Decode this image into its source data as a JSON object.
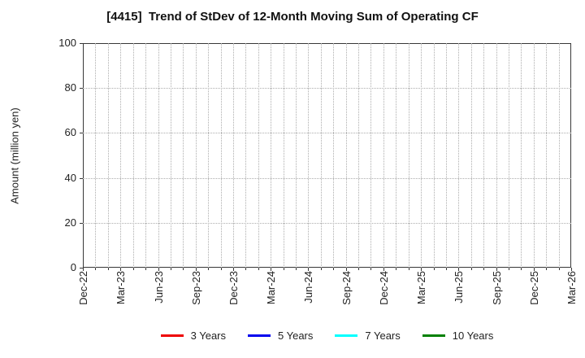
{
  "chart_data": {
    "type": "line",
    "title": "[4415]  Trend of StDev of 12-Month Moving Sum of Operating CF",
    "ylabel": "Amount (million yen)",
    "xlabel": "",
    "ylim": [
      0,
      100
    ],
    "y_ticks": [
      0,
      20,
      40,
      60,
      80,
      100
    ],
    "x_tick_labels": [
      "Dec-22",
      "Mar-23",
      "Jun-23",
      "Sep-23",
      "Dec-23",
      "Mar-24",
      "Jun-24",
      "Sep-24",
      "Dec-24",
      "Mar-25",
      "Jun-25",
      "Sep-25",
      "Dec-25",
      "Mar-26"
    ],
    "x_total_intervals": 39,
    "x_label_every": 3,
    "grid": true,
    "series": [],
    "legend": {
      "position": "bottom",
      "entries": [
        {
          "label": "3 Years",
          "color": "#ee0000"
        },
        {
          "label": "5 Years",
          "color": "#0000ee"
        },
        {
          "label": "7 Years",
          "color": "#00ffff"
        },
        {
          "label": "10 Years",
          "color": "#008000"
        }
      ]
    },
    "colors": {
      "background": "#ffffff",
      "frame": "#383838",
      "grid": "#adadad",
      "tick_text": "#222222",
      "title_text": "#111111"
    }
  }
}
